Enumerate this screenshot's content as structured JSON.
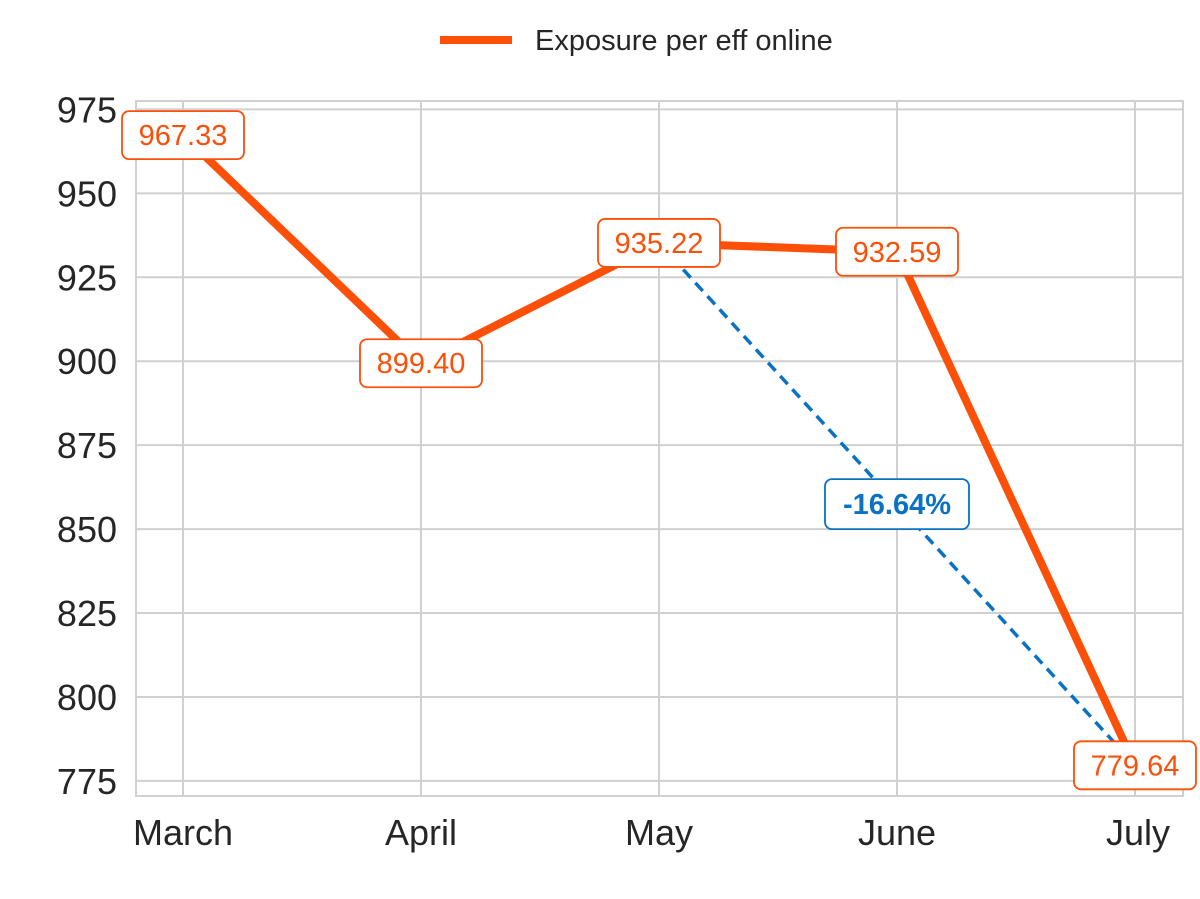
{
  "colors": {
    "series": "#fc4f08",
    "annotation": "#0a72c2",
    "grid": "#d0d0d0",
    "axis_text": "#262626"
  },
  "chart_data": {
    "type": "line",
    "categories": [
      "March",
      "April",
      "May",
      "June",
      "July"
    ],
    "series": [
      {
        "name": "Exposure per eff online",
        "values": [
          967.33,
          899.4,
          935.22,
          932.59,
          779.64
        ]
      }
    ],
    "data_labels": [
      "967.33",
      "899.40",
      "935.22",
      "932.59",
      "779.64"
    ],
    "yticks": [
      775,
      800,
      825,
      850,
      875,
      900,
      925,
      950,
      975
    ],
    "ylim": [
      770.5,
      977.5
    ],
    "grid": true,
    "legend": {
      "position": "top-center",
      "label": "Exposure per eff online"
    },
    "annotation": {
      "from_category": "May",
      "to_category": "July",
      "from_value": 935.22,
      "to_value": 779.64,
      "text": "-16.64%",
      "style": "dashed"
    },
    "title": "",
    "xlabel": "",
    "ylabel": ""
  }
}
